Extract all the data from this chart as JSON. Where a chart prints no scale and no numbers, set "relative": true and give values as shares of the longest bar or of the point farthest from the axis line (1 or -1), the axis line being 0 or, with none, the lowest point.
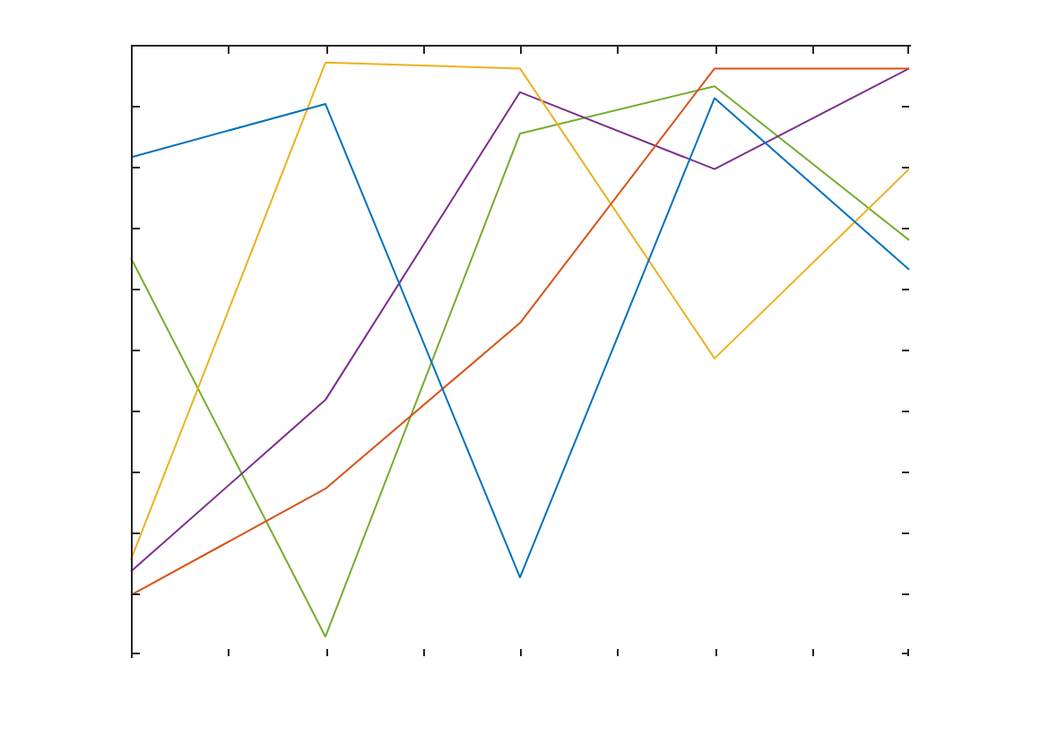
{
  "chart_data": {
    "type": "line",
    "relative": true,
    "tick_labels": false,
    "legend": false,
    "categories": [
      null,
      null,
      null,
      null,
      null
    ],
    "series": [
      {
        "color": "#0072bd",
        "values": [
          0.84,
          0.93,
          0.13,
          0.94,
          0.65
        ]
      },
      {
        "color": "#d95319",
        "values": [
          0.1,
          0.28,
          0.56,
          0.99,
          0.99
        ]
      },
      {
        "color": "#edb120",
        "values": [
          0.16,
          1,
          0.99,
          0.5,
          0.82
        ]
      },
      {
        "color": "#7e2f8e",
        "values": [
          0.14,
          0.43,
          0.95,
          0.82,
          0.99
        ]
      },
      {
        "color": "#77ac30",
        "values": [
          0.67,
          0.03,
          0.88,
          0.96,
          0.7
        ]
      }
    ]
  }
}
